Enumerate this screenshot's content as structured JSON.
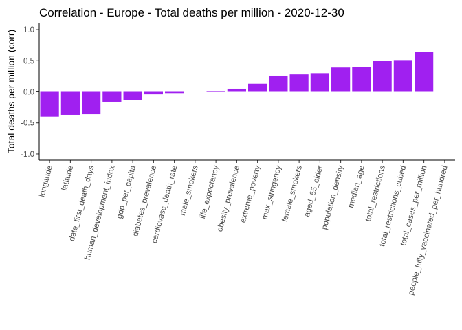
{
  "chart_data": {
    "type": "bar",
    "title": "Correlation - Europe - Total deaths per million - 2020-12-30",
    "xlabel": "",
    "ylabel": "Total deaths per million (corr)",
    "ylim": [
      -1.1,
      1.1
    ],
    "yticks": [
      -1.0,
      -0.5,
      0.0,
      0.5,
      1.0
    ],
    "ytick_labels": [
      "-1.0",
      "-0.5",
      "0.0",
      "0.5",
      "1.0"
    ],
    "grid": false,
    "bar_color": "#a020f0",
    "categories": [
      "longitude",
      "latitude",
      "date_first_death_days",
      "human_development_index",
      "gdp_per_capita",
      "diabetes_prevalence",
      "cardiovasc_death_rate",
      "male_smokers",
      "life_expectancy",
      "obesity_prevalence",
      "extreme_poverty",
      "max_stringency",
      "female_smokers",
      "aged_65_older",
      "population_density",
      "median_age",
      "total_restrictions",
      "total_restrictions_cubed",
      "total_cases_per_million",
      "people_fully_vaccinated_per_hundred"
    ],
    "values": [
      -0.4,
      -0.37,
      -0.36,
      -0.16,
      -0.13,
      -0.04,
      -0.02,
      0.0,
      0.01,
      0.05,
      0.13,
      0.26,
      0.28,
      0.3,
      0.39,
      0.4,
      0.5,
      0.51,
      0.64,
      null
    ]
  }
}
